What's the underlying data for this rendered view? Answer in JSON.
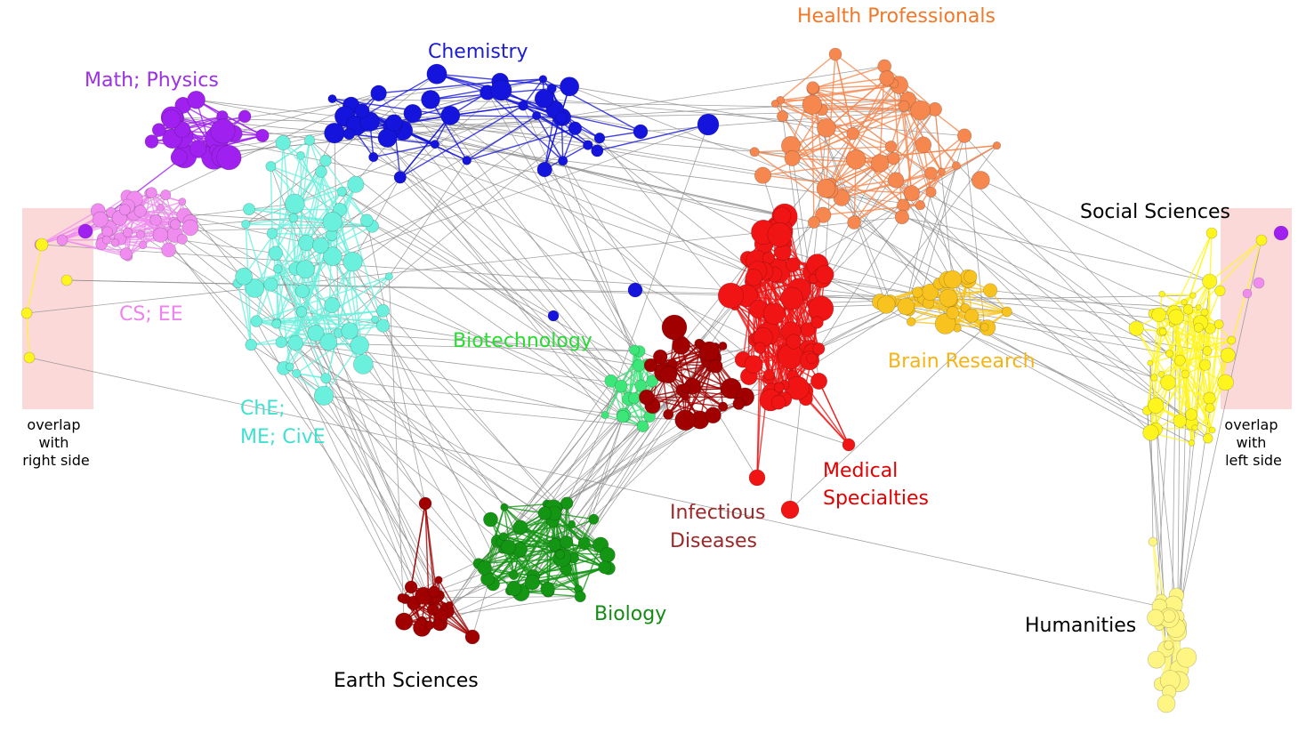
{
  "clusters": [
    {
      "id": "math-physics",
      "label": "Math; Physics",
      "color": "#9b30e6",
      "node_color": "#a020f0"
    },
    {
      "id": "cs-ee",
      "label": "CS; EE",
      "color": "#ee82ee",
      "node_color": "#f08cf0"
    },
    {
      "id": "chemistry",
      "label": "Chemistry",
      "color": "#1c1cd2",
      "node_color": "#1414dc"
    },
    {
      "id": "che-me-cive",
      "label_lines": [
        "ChE;",
        "ME; CivE"
      ],
      "color": "#40e0d0",
      "node_color": "#6af0dc"
    },
    {
      "id": "health-professionals",
      "label": "Health Professionals",
      "color": "#f07828",
      "node_color": "#f5874f"
    },
    {
      "id": "biotechnology",
      "label": "Biotechnology",
      "color": "#28dc32",
      "node_color": "#3ce678"
    },
    {
      "id": "social-sciences",
      "label": "Social Sciences",
      "color": "#000000",
      "node_color": "#fff51e"
    },
    {
      "id": "brain-research",
      "label": "Brain Research",
      "color": "#f5b414",
      "node_color": "#f8c31e"
    },
    {
      "id": "medical-specialties",
      "label_lines": [
        "Medical",
        "Specialties"
      ],
      "color": "#e10000",
      "node_color": "#f01414"
    },
    {
      "id": "infectious-diseases",
      "label_lines": [
        "Infectious",
        "Diseases"
      ],
      "color": "#9b2828",
      "node_color": "#a00000"
    },
    {
      "id": "biology",
      "label": "Biology",
      "color": "#148c14",
      "node_color": "#149614"
    },
    {
      "id": "earth-sciences",
      "label": "Earth Sciences",
      "color": "#000000",
      "node_color": "#a00000"
    },
    {
      "id": "humanities",
      "label": "Humanities",
      "color": "#000000",
      "node_color": "#fff582"
    }
  ],
  "overlap_notes": {
    "left": [
      "overlap",
      "with",
      "right side"
    ],
    "right": [
      "overlap",
      "with",
      "left side"
    ]
  },
  "colors": {
    "edge_gray": "#8c8c8c",
    "overlap_fill": "#fcd9d9"
  }
}
